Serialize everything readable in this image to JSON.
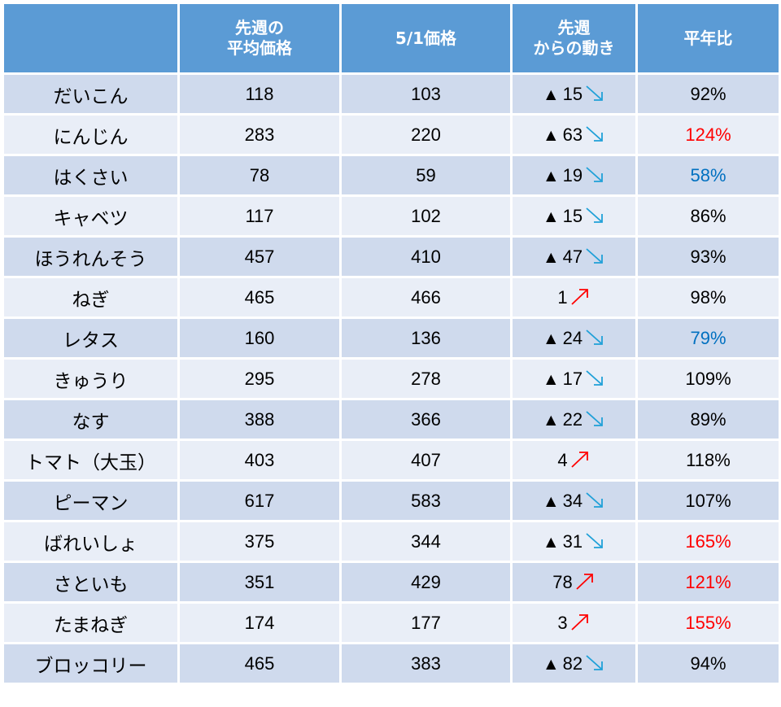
{
  "header": {
    "col0": "",
    "col1_line1": "先週の",
    "col1_line2": "平均価格",
    "col2": "5/1価格",
    "col3_line1": "先週",
    "col3_line2": "からの動き",
    "col4": "平年比"
  },
  "colors": {
    "header_bg": "#5b9bd5",
    "row_dark": "#cfdaed",
    "row_light": "#e9eef7",
    "high": "#ff0000",
    "low": "#0070c0",
    "down_arrow": "#1fa0d8",
    "up_arrow": "#ff0000"
  },
  "rows": [
    {
      "name": "だいこん",
      "last_week": "118",
      "may1": "103",
      "change_mark": "▲",
      "change": "15",
      "trend": "down",
      "ratio": "92%",
      "ratio_tone": "normal"
    },
    {
      "name": "にんじん",
      "last_week": "283",
      "may1": "220",
      "change_mark": "▲",
      "change": "63",
      "trend": "down",
      "ratio": "124%",
      "ratio_tone": "high"
    },
    {
      "name": "はくさい",
      "last_week": "78",
      "may1": "59",
      "change_mark": "▲",
      "change": "19",
      "trend": "down",
      "ratio": "58%",
      "ratio_tone": "low"
    },
    {
      "name": "キャベツ",
      "last_week": "117",
      "may1": "102",
      "change_mark": "▲",
      "change": "15",
      "trend": "down",
      "ratio": "86%",
      "ratio_tone": "normal"
    },
    {
      "name": "ほうれんそう",
      "last_week": "457",
      "may1": "410",
      "change_mark": "▲",
      "change": "47",
      "trend": "down",
      "ratio": "93%",
      "ratio_tone": "normal"
    },
    {
      "name": "ねぎ",
      "last_week": "465",
      "may1": "466",
      "change_mark": "",
      "change": "1",
      "trend": "up",
      "ratio": "98%",
      "ratio_tone": "normal"
    },
    {
      "name": "レタス",
      "last_week": "160",
      "may1": "136",
      "change_mark": "▲",
      "change": "24",
      "trend": "down",
      "ratio": "79%",
      "ratio_tone": "low"
    },
    {
      "name": "きゅうり",
      "last_week": "295",
      "may1": "278",
      "change_mark": "▲",
      "change": "17",
      "trend": "down",
      "ratio": "109%",
      "ratio_tone": "normal"
    },
    {
      "name": "なす",
      "last_week": "388",
      "may1": "366",
      "change_mark": "▲",
      "change": "22",
      "trend": "down",
      "ratio": "89%",
      "ratio_tone": "normal"
    },
    {
      "name": "トマト（大玉）",
      "last_week": "403",
      "may1": "407",
      "change_mark": "",
      "change": "4",
      "trend": "up",
      "ratio": "118%",
      "ratio_tone": "normal"
    },
    {
      "name": "ピーマン",
      "last_week": "617",
      "may1": "583",
      "change_mark": "▲",
      "change": "34",
      "trend": "down",
      "ratio": "107%",
      "ratio_tone": "normal"
    },
    {
      "name": "ばれいしょ",
      "last_week": "375",
      "may1": "344",
      "change_mark": "▲",
      "change": "31",
      "trend": "down",
      "ratio": "165%",
      "ratio_tone": "high"
    },
    {
      "name": "さといも",
      "last_week": "351",
      "may1": "429",
      "change_mark": "",
      "change": "78",
      "trend": "up",
      "ratio": "121%",
      "ratio_tone": "high"
    },
    {
      "name": "たまねぎ",
      "last_week": "174",
      "may1": "177",
      "change_mark": "",
      "change": "3",
      "trend": "up",
      "ratio": "155%",
      "ratio_tone": "high"
    },
    {
      "name": "ブロッコリー",
      "last_week": "465",
      "may1": "383",
      "change_mark": "▲",
      "change": "82",
      "trend": "down",
      "ratio": "94%",
      "ratio_tone": "normal"
    }
  ]
}
